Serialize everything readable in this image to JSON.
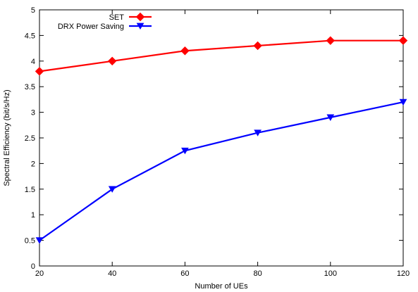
{
  "chart_data": {
    "type": "line",
    "title": "",
    "xlabel": "Number of UEs",
    "ylabel": "Spectral Efficiency (bit/s/Hz)",
    "x": [
      20,
      40,
      60,
      80,
      100,
      120
    ],
    "xlim": [
      20,
      120
    ],
    "ylim": [
      0,
      5
    ],
    "xticks": [
      "20",
      "40",
      "60",
      "80",
      "100",
      "120"
    ],
    "yticks": [
      "0",
      "0.5",
      "1",
      "1.5",
      "2",
      "2.5",
      "3",
      "3.5",
      "4",
      "4.5",
      "5"
    ],
    "grid": false,
    "legend_position": "top-left",
    "series": [
      {
        "name": "SET",
        "values": [
          3.8,
          4.0,
          4.2,
          4.3,
          4.4,
          4.4
        ],
        "color": "#ff0000",
        "marker": "diamond"
      },
      {
        "name": "DRX Power Saving",
        "values": [
          0.5,
          1.5,
          2.25,
          2.6,
          2.9,
          3.2
        ],
        "color": "#0000ff",
        "marker": "triangle-down"
      }
    ]
  }
}
